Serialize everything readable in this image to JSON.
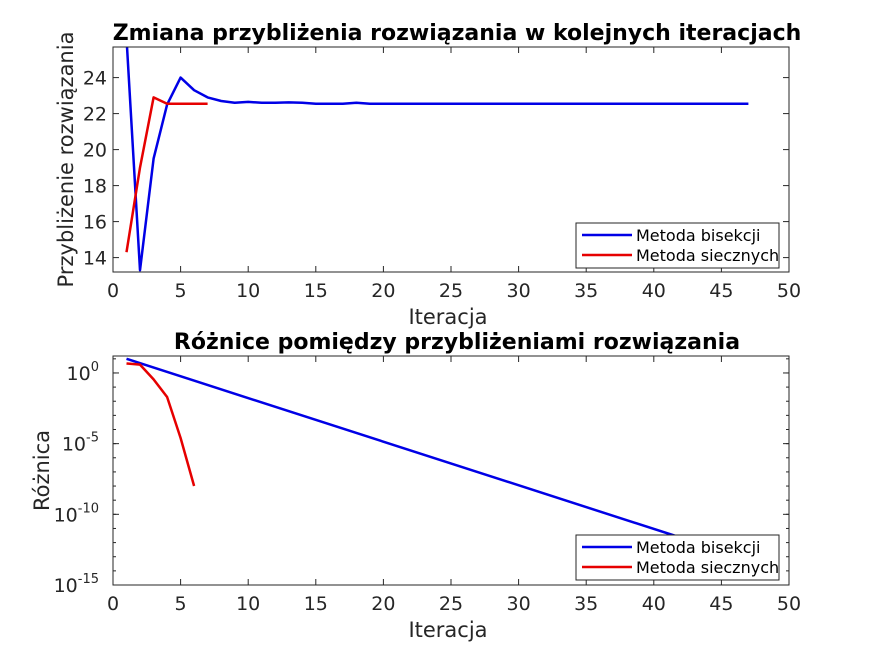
{
  "chart_data": [
    {
      "type": "line",
      "title": "Zmiana przybliżenia rozwiązania w kolejnych iteracjach",
      "xlabel": "Iteracja",
      "ylabel": "Przybliżenie rozwiązania",
      "xlim": [
        0,
        50
      ],
      "ylim": [
        13.2,
        25.7
      ],
      "yscale": "linear",
      "grid": false,
      "legend_position": "bottom-right",
      "xticks": [
        "0",
        "5",
        "10",
        "15",
        "20",
        "25",
        "30",
        "35",
        "40",
        "45",
        "50"
      ],
      "yticks": [
        "14",
        "16",
        "18",
        "20",
        "22",
        "24"
      ],
      "series": [
        {
          "name": "Metoda bisekcji",
          "color": "#0000e6",
          "x": [
            1,
            2,
            3,
            4,
            5,
            6,
            7,
            8,
            9,
            10,
            11,
            12,
            13,
            14,
            15,
            16,
            17,
            18,
            19,
            20,
            21,
            22,
            23,
            24,
            25,
            26,
            27,
            28,
            29,
            30,
            31,
            32,
            33,
            34,
            35,
            36,
            37,
            38,
            39,
            40,
            41,
            42,
            43,
            44,
            45,
            46,
            47
          ],
          "y": [
            26.2,
            13.3,
            19.5,
            22.5,
            24.0,
            23.3,
            22.9,
            22.7,
            22.6,
            22.65,
            22.6,
            22.6,
            22.62,
            22.6,
            22.55,
            22.55,
            22.55,
            22.6,
            22.55,
            22.55,
            22.55,
            22.55,
            22.55,
            22.55,
            22.55,
            22.55,
            22.55,
            22.55,
            22.55,
            22.55,
            22.55,
            22.55,
            22.55,
            22.55,
            22.55,
            22.55,
            22.55,
            22.55,
            22.55,
            22.55,
            22.55,
            22.55,
            22.55,
            22.55,
            22.55,
            22.55,
            22.55
          ]
        },
        {
          "name": "Metoda siecznych",
          "color": "#e60000",
          "x": [
            1,
            2,
            3,
            4,
            5,
            6,
            7
          ],
          "y": [
            14.3,
            19.0,
            22.9,
            22.55,
            22.55,
            22.55,
            22.55
          ]
        }
      ]
    },
    {
      "type": "line",
      "title": "Różnice pomiędzy przybliżeniami rozwiązania",
      "xlabel": "Iteracja",
      "ylabel": "Różnica",
      "xlim": [
        0,
        50
      ],
      "ylim_exponent": [
        -15,
        1.2
      ],
      "yscale": "log",
      "grid": false,
      "legend_position": "bottom-right",
      "xticks": [
        "0",
        "5",
        "10",
        "15",
        "20",
        "25",
        "30",
        "35",
        "40",
        "45",
        "50"
      ],
      "yticks": [
        {
          "base": "10",
          "exp": "0"
        },
        {
          "base": "10",
          "exp": "-5"
        },
        {
          "base": "10",
          "exp": "-10"
        },
        {
          "base": "10",
          "exp": "-15"
        }
      ],
      "series": [
        {
          "name": "Metoda bisekcji",
          "color": "#0000e6",
          "x": [
            1,
            43
          ],
          "y": [
            10.0,
            1.1e-12
          ]
        },
        {
          "name": "Metoda siecznych",
          "color": "#e60000",
          "x": [
            1,
            2,
            3,
            4,
            5,
            6
          ],
          "y": [
            4.7,
            3.9,
            0.35,
            0.02,
            2.5e-05,
            1e-08
          ]
        }
      ]
    }
  ]
}
